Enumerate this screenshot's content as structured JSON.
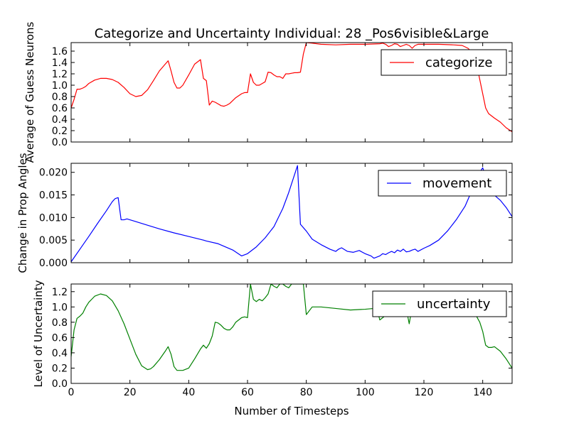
{
  "figure": {
    "title": "Categorize and Uncertainty Individual: 28 _Pos6visible&Large",
    "xlabel": "Number of Timesteps"
  },
  "chart_data": [
    {
      "type": "line",
      "title": "Categorize and Uncertainty Individual: 28 _Pos6visible&Large",
      "xlabel": "",
      "ylabel": "Average of Guess Neurons",
      "xlim": [
        0,
        150
      ],
      "ylim": [
        0,
        1.75
      ],
      "xticks": [
        0,
        20,
        40,
        60,
        80,
        100,
        120,
        140
      ],
      "xtick_labels_visible": false,
      "yticks": [
        0.0,
        0.2,
        0.4,
        0.6,
        0.8,
        1.0,
        1.2,
        1.4,
        1.6
      ],
      "ytick_labels": [
        "0.0",
        "0.2",
        "0.4",
        "0.6",
        "0.8",
        "1.0",
        "1.2",
        "1.4",
        "1.6"
      ],
      "grid": false,
      "legend_position": "top-right",
      "series": [
        {
          "name": "categorize",
          "color": "#ff0000",
          "x": [
            0,
            1,
            2,
            3,
            4,
            5,
            6,
            8,
            10,
            12,
            14,
            16,
            18,
            20,
            22,
            24,
            26,
            28,
            30,
            32,
            33,
            34,
            35,
            36,
            37,
            38,
            40,
            42,
            44,
            45,
            46,
            47,
            48,
            49,
            50,
            51,
            52,
            53,
            54,
            56,
            58,
            59,
            60,
            61,
            62,
            63,
            64,
            65,
            66,
            67,
            68,
            69,
            70,
            71,
            72,
            73,
            74,
            75,
            76,
            77,
            78,
            79,
            80,
            82,
            85,
            90,
            95,
            100,
            105,
            106,
            107,
            108,
            109,
            110,
            111,
            112,
            113,
            114,
            115,
            116,
            117,
            118,
            120,
            125,
            130,
            133,
            135,
            136,
            137,
            138,
            139,
            140,
            141,
            142,
            144,
            146,
            148,
            150
          ],
          "values": [
            0.6,
            0.75,
            0.93,
            0.93,
            0.95,
            0.98,
            1.03,
            1.09,
            1.12,
            1.12,
            1.1,
            1.05,
            0.96,
            0.85,
            0.8,
            0.82,
            0.92,
            1.08,
            1.25,
            1.37,
            1.43,
            1.25,
            1.05,
            0.95,
            0.95,
            1.0,
            1.18,
            1.37,
            1.45,
            1.12,
            1.08,
            0.65,
            0.72,
            0.7,
            0.67,
            0.64,
            0.63,
            0.65,
            0.68,
            0.78,
            0.85,
            0.87,
            0.87,
            1.2,
            1.05,
            1.0,
            1.0,
            1.03,
            1.06,
            1.23,
            1.22,
            1.18,
            1.15,
            1.15,
            1.12,
            1.2,
            1.2,
            1.21,
            1.22,
            1.22,
            1.23,
            1.55,
            1.75,
            1.74,
            1.72,
            1.71,
            1.72,
            1.72,
            1.73,
            1.74,
            1.72,
            1.68,
            1.7,
            1.73,
            1.72,
            1.68,
            1.7,
            1.72,
            1.7,
            1.65,
            1.7,
            1.72,
            1.72,
            1.72,
            1.71,
            1.7,
            1.65,
            1.6,
            1.5,
            1.35,
            1.1,
            0.85,
            0.6,
            0.5,
            0.42,
            0.35,
            0.25,
            0.18
          ]
        }
      ]
    },
    {
      "type": "line",
      "title": "",
      "xlabel": "",
      "ylabel": "Change in Prop Angles",
      "xlim": [
        0,
        150
      ],
      "ylim": [
        0,
        0.022
      ],
      "xticks": [
        0,
        20,
        40,
        60,
        80,
        100,
        120,
        140
      ],
      "xtick_labels_visible": false,
      "yticks": [
        0.0,
        0.005,
        0.01,
        0.015,
        0.02
      ],
      "ytick_labels": [
        "0.000",
        "0.005",
        "0.010",
        "0.015",
        "0.020"
      ],
      "grid": false,
      "legend_position": "top-right",
      "series": [
        {
          "name": "movement",
          "color": "#0000ff",
          "x": [
            0,
            3,
            6,
            9,
            12,
            14,
            15,
            16,
            17,
            18,
            19,
            20,
            21,
            25,
            30,
            35,
            40,
            45,
            46,
            50,
            55,
            58,
            60,
            63,
            66,
            69,
            72,
            74,
            76,
            77,
            78,
            80,
            82,
            85,
            88,
            90,
            91,
            92,
            94,
            96,
            97,
            98,
            100,
            102,
            103,
            105,
            106,
            107,
            108,
            109,
            110,
            111,
            112,
            113,
            114,
            115,
            116,
            117,
            118,
            120,
            122,
            125,
            128,
            131,
            134,
            136,
            137,
            138,
            139,
            140,
            143,
            146,
            148,
            150
          ],
          "values": [
            0.0002,
            0.003,
            0.0058,
            0.0087,
            0.0115,
            0.0135,
            0.0142,
            0.0144,
            0.0095,
            0.0095,
            0.0097,
            0.0095,
            0.0093,
            0.0085,
            0.0075,
            0.0066,
            0.0058,
            0.005,
            0.0048,
            0.0042,
            0.0028,
            0.0015,
            0.002,
            0.0035,
            0.0055,
            0.008,
            0.012,
            0.0155,
            0.0195,
            0.0215,
            0.0085,
            0.007,
            0.0052,
            0.004,
            0.003,
            0.0025,
            0.003,
            0.0033,
            0.0025,
            0.0023,
            0.0025,
            0.0027,
            0.002,
            0.0015,
            0.001,
            0.0015,
            0.002,
            0.0018,
            0.0022,
            0.0025,
            0.0022,
            0.0028,
            0.0025,
            0.003,
            0.0024,
            0.0025,
            0.0028,
            0.003,
            0.0025,
            0.0032,
            0.0038,
            0.005,
            0.007,
            0.0095,
            0.0125,
            0.0155,
            0.017,
            0.0185,
            0.02,
            0.021,
            0.0155,
            0.0138,
            0.0122,
            0.0102
          ]
        }
      ]
    },
    {
      "type": "line",
      "title": "",
      "xlabel": "Number of Timesteps",
      "ylabel": "Level of Uncertainty",
      "xlim": [
        0,
        150
      ],
      "ylim": [
        0,
        1.3
      ],
      "xticks": [
        0,
        20,
        40,
        60,
        80,
        100,
        120,
        140
      ],
      "xtick_labels": [
        "0",
        "20",
        "40",
        "60",
        "80",
        "100",
        "120",
        "140"
      ],
      "yticks": [
        0.0,
        0.2,
        0.4,
        0.6,
        0.8,
        1.0,
        1.2
      ],
      "ytick_labels": [
        "0.0",
        "0.2",
        "0.4",
        "0.6",
        "0.8",
        "1.0",
        "1.2"
      ],
      "grid": false,
      "legend_position": "top-right",
      "series": [
        {
          "name": "uncertainty",
          "color": "#008000",
          "x": [
            0,
            1,
            2,
            3,
            4,
            5,
            6,
            8,
            10,
            12,
            14,
            16,
            18,
            20,
            22,
            24,
            26,
            27,
            28,
            30,
            32,
            33,
            34,
            35,
            36,
            37,
            38,
            40,
            42,
            44,
            45,
            46,
            47,
            48,
            49,
            50,
            51,
            52,
            53,
            54,
            55,
            56,
            58,
            59,
            60,
            61,
            62,
            63,
            64,
            65,
            66,
            67,
            68,
            69,
            70,
            71,
            72,
            73,
            74,
            75,
            76,
            77,
            78,
            79,
            80,
            82,
            85,
            90,
            95,
            100,
            103,
            104,
            105,
            110,
            113,
            114,
            115,
            116,
            120,
            125,
            130,
            135,
            137,
            138,
            139,
            140,
            141,
            142,
            143,
            144,
            146,
            148,
            150
          ],
          "values": [
            0.35,
            0.7,
            0.85,
            0.88,
            0.92,
            1.0,
            1.06,
            1.14,
            1.17,
            1.15,
            1.08,
            0.95,
            0.78,
            0.58,
            0.38,
            0.23,
            0.18,
            0.19,
            0.22,
            0.31,
            0.42,
            0.48,
            0.38,
            0.22,
            0.17,
            0.17,
            0.17,
            0.2,
            0.32,
            0.45,
            0.5,
            0.46,
            0.52,
            0.62,
            0.8,
            0.79,
            0.76,
            0.72,
            0.7,
            0.7,
            0.74,
            0.8,
            0.86,
            0.87,
            0.86,
            1.3,
            1.1,
            1.07,
            1.1,
            1.08,
            1.12,
            1.17,
            1.3,
            1.27,
            1.25,
            1.3,
            1.3,
            1.27,
            1.25,
            1.3,
            1.3,
            1.3,
            1.3,
            1.3,
            0.9,
            1.0,
            1.0,
            0.98,
            0.96,
            0.97,
            0.98,
            0.98,
            0.83,
            0.98,
            0.97,
            0.98,
            0.78,
            1.0,
            0.98,
            0.97,
            0.98,
            0.95,
            0.9,
            0.87,
            0.8,
            0.68,
            0.5,
            0.47,
            0.47,
            0.48,
            0.42,
            0.32,
            0.2
          ]
        }
      ]
    }
  ]
}
